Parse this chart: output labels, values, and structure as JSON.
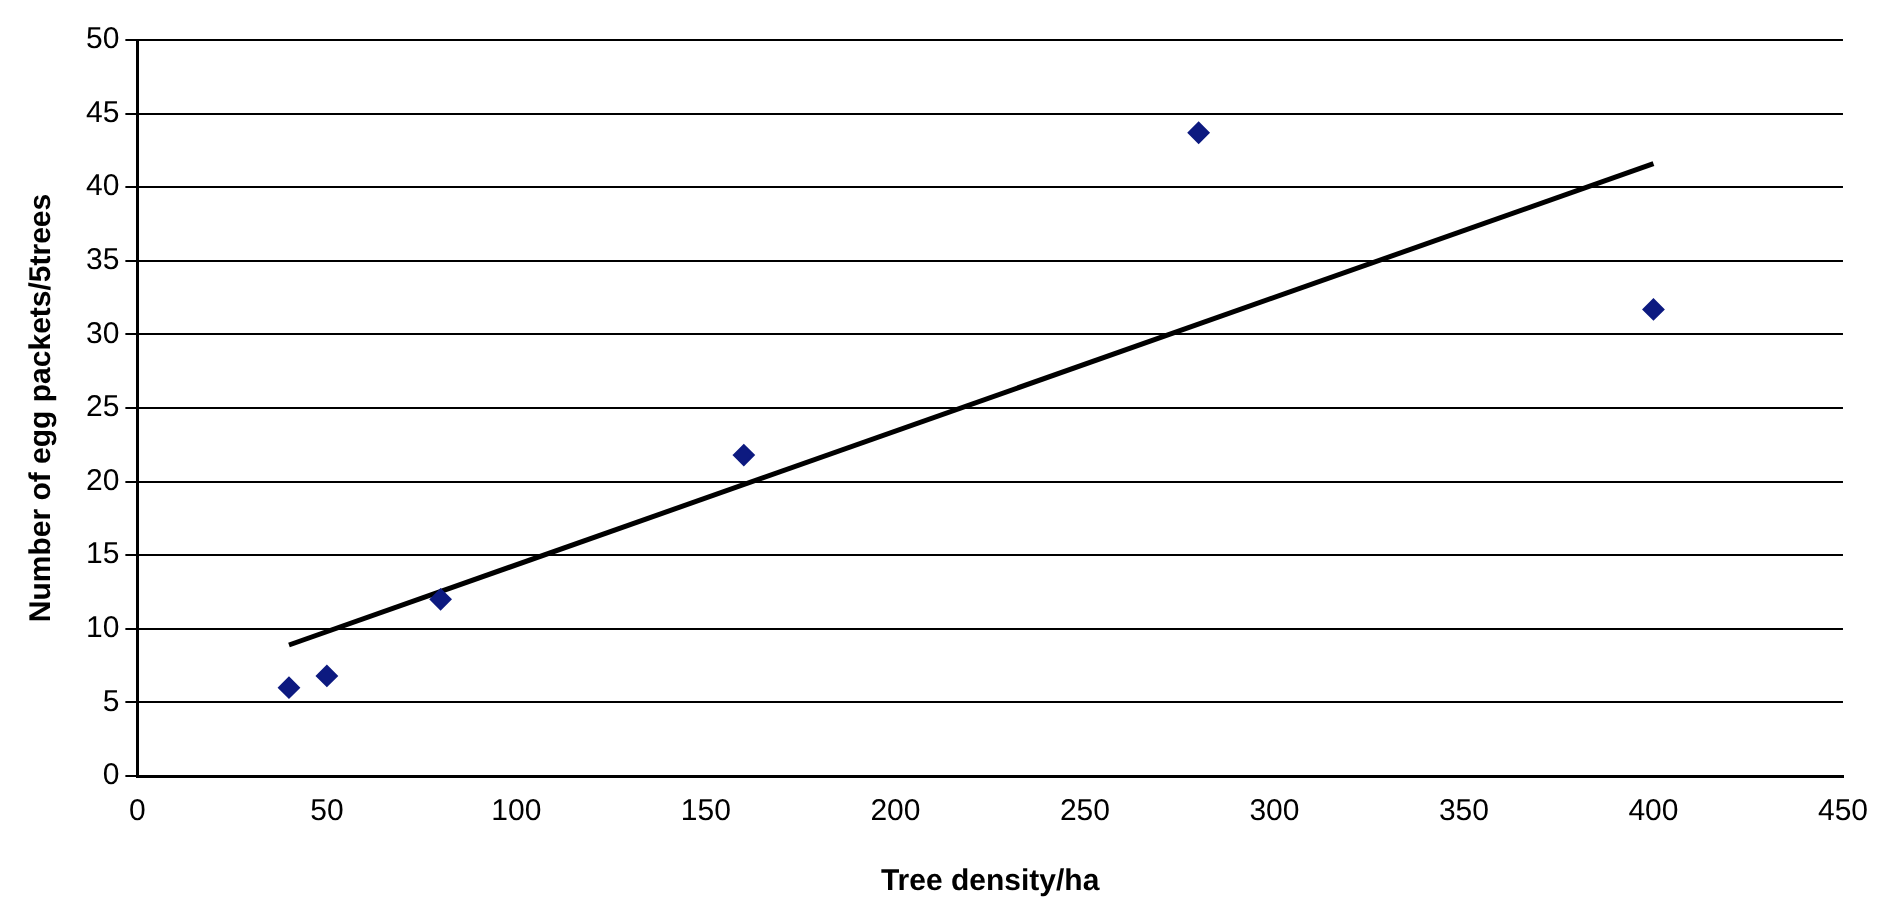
{
  "chart_data": {
    "type": "scatter",
    "xlabel": "Tree density/ha",
    "ylabel": "Number of egg packets/5trees",
    "series": [
      {
        "marker": "diamond",
        "color": "#0d1a80",
        "x": [
          40,
          50,
          80,
          160,
          280,
          400
        ],
        "values": [
          6,
          6.8,
          12,
          21.8,
          43.7,
          31.7
        ]
      },
      {
        "type": "line",
        "marker": "none",
        "color": "#000000",
        "x": [
          40,
          400
        ],
        "values": [
          8.9,
          41.6
        ]
      }
    ],
    "xlim": [
      0,
      450
    ],
    "xticks": [
      0,
      50,
      100,
      150,
      200,
      250,
      300,
      350,
      400,
      450
    ],
    "ylim": [
      0,
      50
    ],
    "yticks": [
      0,
      5,
      10,
      15,
      20,
      25,
      30,
      35,
      40,
      45,
      50
    ],
    "grid": "y",
    "legend": false
  }
}
